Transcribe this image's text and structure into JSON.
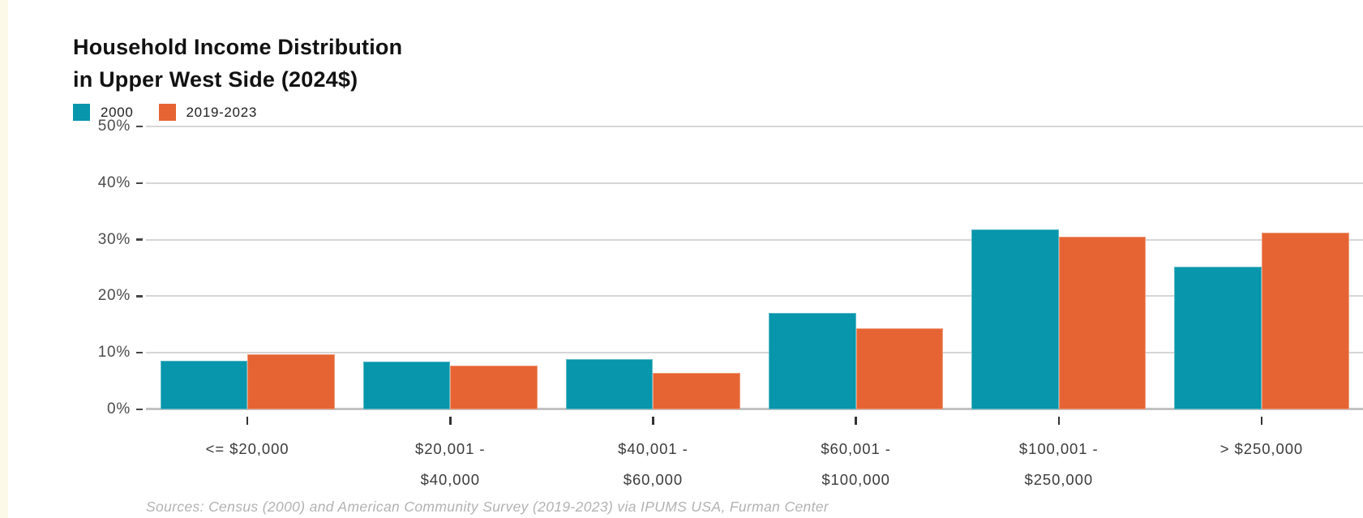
{
  "page": {
    "left_strip_color": "#fdf9e9"
  },
  "header": {
    "title_line1": "Household Income Distribution",
    "title_line2": "in Upper West Side (2024$)"
  },
  "legend": {
    "items": [
      {
        "label": "2000",
        "color": "#0796ab"
      },
      {
        "label": "2019-2023",
        "color": "#e66433"
      }
    ]
  },
  "chart_data": {
    "type": "bar",
    "title": "Household Income Distribution in Upper West Side (2024$)",
    "categories": [
      "<= $20,000",
      "$20,001 - $40,000",
      "$40,001 - $60,000",
      "$60,001 - $100,000",
      "$100,001 - $250,000",
      "> $250,000"
    ],
    "category_lines": [
      [
        "<= $20,000"
      ],
      [
        "$20,001 -",
        "$40,000"
      ],
      [
        "$40,001 -",
        "$60,000"
      ],
      [
        "$60,001 -",
        "$100,000"
      ],
      [
        "$100,001 -",
        "$250,000"
      ],
      [
        "> $250,000"
      ]
    ],
    "series": [
      {
        "name": "2000",
        "color": "#0796ab",
        "values": [
          8.6,
          8.5,
          8.9,
          17.0,
          31.8,
          25.2
        ]
      },
      {
        "name": "2019-2023",
        "color": "#e66433",
        "values": [
          9.7,
          7.8,
          6.4,
          14.3,
          30.5,
          31.2
        ]
      }
    ],
    "xlabel": "",
    "ylabel": "",
    "y_ticks": [
      "50%",
      "40%",
      "30%",
      "20%",
      "10%",
      "0%"
    ],
    "y_tick_values": [
      50,
      40,
      30,
      20,
      10,
      0
    ],
    "ylim": [
      0,
      50
    ],
    "grid": true,
    "legend_position": "top-left"
  },
  "footer": {
    "source": "Sources: Census (2000) and American Community Survey (2019-2023) via IPUMS USA, Furman Center"
  }
}
